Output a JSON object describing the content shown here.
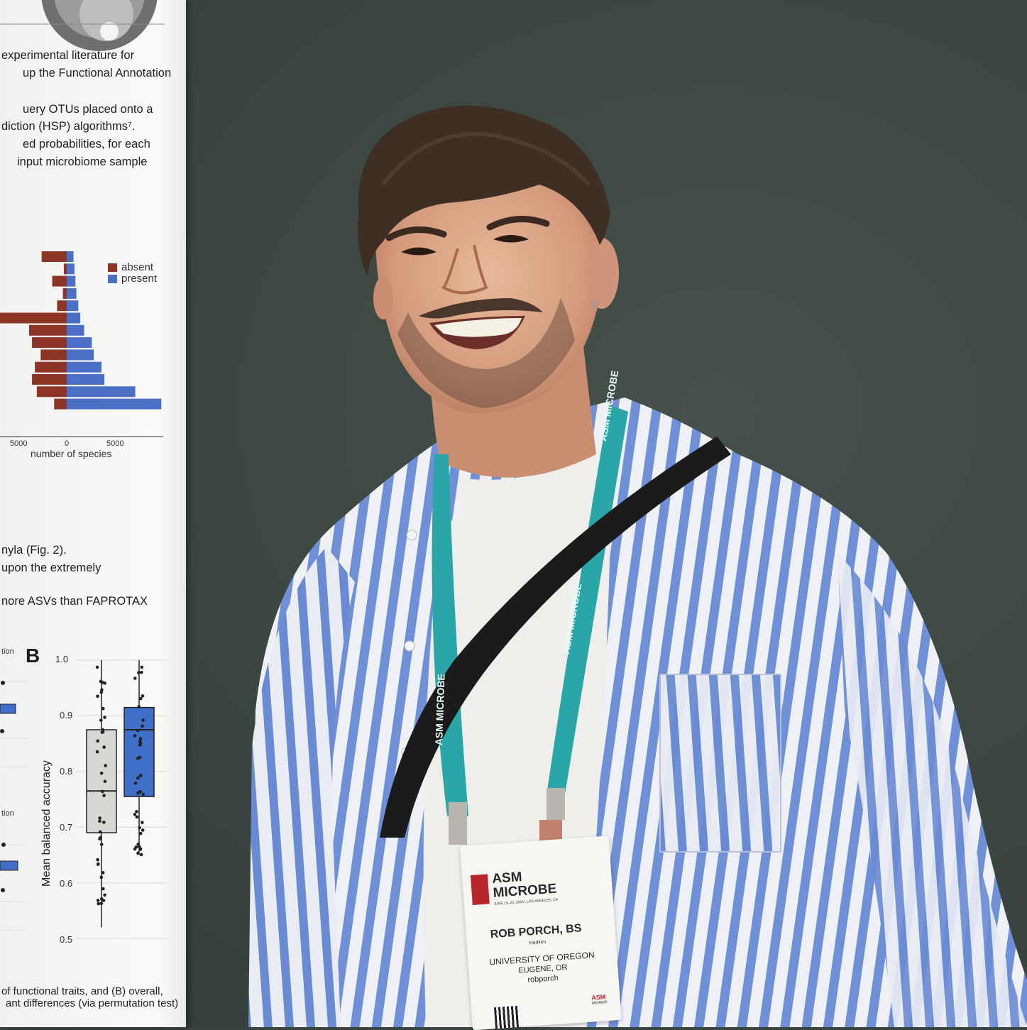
{
  "poster": {
    "lines": [
      "experimental literature for",
      "up the Functional Annotation",
      "uery OTUs placed onto a",
      "diction (HSP) algorithms⁷.",
      "ed probabilities, for each",
      "input microbiome sample",
      "nyla (Fig. 2).",
      "upon the extremely",
      "nore ASVs than FAPROTAX",
      "of functional traits, and (B) overall,",
      "ant differences (via permutation test)"
    ],
    "cut_labels": [
      "tion",
      "tion"
    ],
    "panel_label": "B"
  },
  "chart_data": [
    {
      "type": "bar",
      "orientation": "horizontal",
      "xlabel": "number of species",
      "x_ticks": [
        "5000",
        "0",
        "5000"
      ],
      "legend": [
        "absent",
        "present"
      ],
      "legend_position": "top-right",
      "colors": {
        "absent": "#8e3424",
        "present": "#4a6fc4"
      },
      "series": [
        {
          "name": "absent",
          "values": [
            2600,
            300,
            1500,
            400,
            1000,
            7500,
            3900,
            3600,
            2700,
            3300,
            3600,
            3100,
            1300
          ]
        },
        {
          "name": "present",
          "values": [
            700,
            800,
            900,
            1000,
            1200,
            1400,
            1800,
            2600,
            2800,
            3600,
            3900,
            7100,
            9800
          ]
        }
      ]
    },
    {
      "type": "boxplot",
      "ylabel": "Mean balanced accuracy",
      "ylim": [
        0.5,
        1.0
      ],
      "y_ticks": [
        "0.5",
        "0.6",
        "0.7",
        "0.8",
        "0.9",
        "1.0"
      ],
      "boxes": [
        {
          "color": "#d7d7d4",
          "min": 0.52,
          "q1": 0.69,
          "median": 0.765,
          "q3": 0.875,
          "max": 1.0
        },
        {
          "color": "#3f6fc8",
          "min": 0.65,
          "q1": 0.755,
          "median": 0.875,
          "q3": 0.915,
          "max": 1.0
        }
      ]
    }
  ],
  "badge": {
    "logo_line1": "ASM",
    "logo_line2": "MICROBE",
    "dates": "JUNE 19–23, 2025 | LOS ANGELES, CA",
    "name": "ROB PORCH, BS",
    "pronouns": "He/Him",
    "org": "UNIVERSITY OF OREGON",
    "city": "EUGENE, OR",
    "handle": "robporch",
    "member": "ASM",
    "member_sub": "MEMBER"
  },
  "lanyard_text": "ASM MICROBE"
}
